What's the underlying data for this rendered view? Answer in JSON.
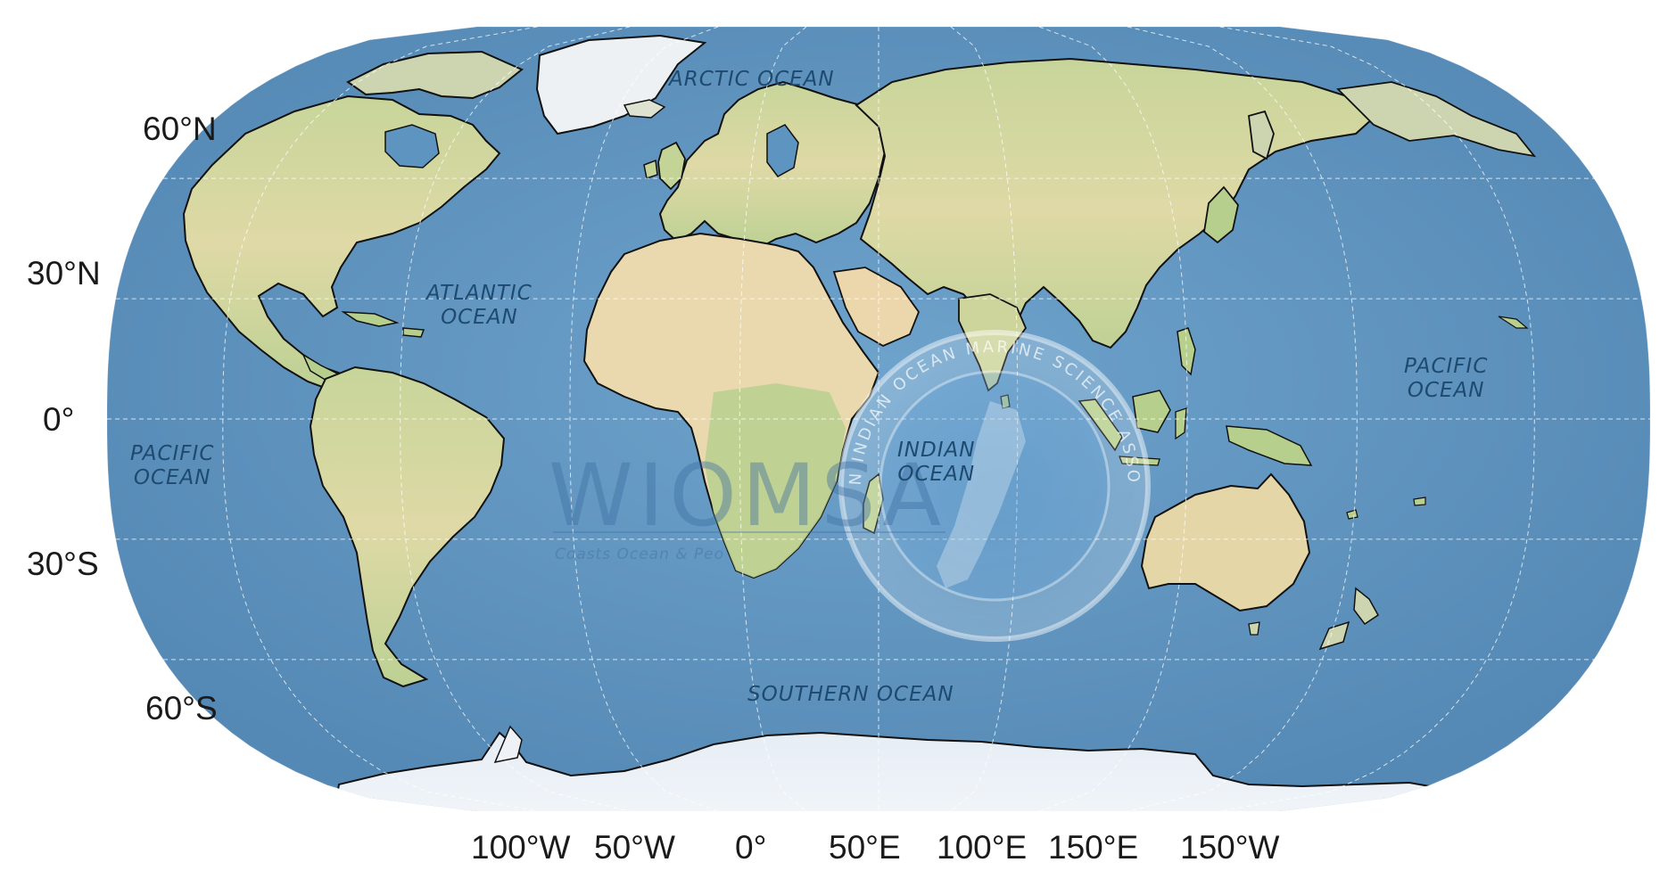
{
  "map": {
    "projection": "Robinson",
    "graticule": "dashed white lines",
    "colors": {
      "ocean": "#5b93bf",
      "ocean_light": "#7fb0d6",
      "land_low": "#b9cf8f",
      "land_mid": "#dcd8a0",
      "desert": "#ecd9b0",
      "ice": "#eef2f7",
      "coastline": "#111111",
      "ocean_label": "#1e4a70"
    },
    "lat_labels": [
      "60°N",
      "30°N",
      "0°",
      "30°S",
      "60°S"
    ],
    "lon_labels": [
      "100°W",
      "50°W",
      "0°",
      "50°E",
      "100°E",
      "150°E",
      "150°W"
    ],
    "oceans": {
      "arctic": "ARCTIC OCEAN",
      "atlantic_1": "ATLANTIC",
      "atlantic_2": "OCEAN",
      "pacific_west_1": "PACIFIC",
      "pacific_west_2": "OCEAN",
      "pacific_east_1": "PACIFIC",
      "pacific_east_2": "OCEAN",
      "indian_1": "INDIAN",
      "indian_2": "OCEAN",
      "southern": "SOUTHERN OCEAN"
    },
    "watermark": {
      "logo_text": "WIOMSA",
      "tagline": "Coasts Ocean & Peo",
      "seal_text": "WESTERN INDIAN OCEAN MARINE SCIENCE ASSOCIATION"
    }
  }
}
